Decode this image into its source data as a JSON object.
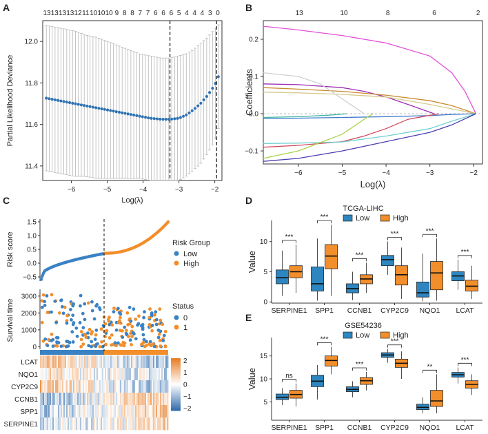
{
  "chart_data": [
    {
      "panel": "A",
      "type": "line",
      "title": "",
      "xlabel": "Log(λ)",
      "ylabel": "Partial Likelihood Deviance",
      "xlim": [
        -6.8,
        -1.8
      ],
      "ylim": [
        11.33,
        12.1
      ],
      "xticks": [
        -6,
        -5,
        -4,
        -3,
        -2
      ],
      "yticks": [
        11.4,
        11.6,
        11.8,
        12.0
      ],
      "top_labels": [
        "13",
        "13",
        "13",
        "13",
        "12",
        "11",
        "10",
        "10",
        "10",
        "9",
        "8",
        "8",
        "7",
        "7",
        "6",
        "6",
        "6",
        "5",
        "4",
        "4",
        "4",
        "3",
        "0"
      ],
      "vlines": [
        -3.25,
        -1.95
      ],
      "x": [
        -6.8,
        -6.5,
        -6.2,
        -5.9,
        -5.6,
        -5.3,
        -5.0,
        -4.7,
        -4.4,
        -4.1,
        -3.8,
        -3.5,
        -3.25,
        -3.0,
        -2.8,
        -2.6,
        -2.4,
        -2.2,
        -2.0,
        -1.9
      ],
      "mean": [
        11.73,
        11.72,
        11.71,
        11.7,
        11.69,
        11.68,
        11.67,
        11.66,
        11.65,
        11.64,
        11.63,
        11.625,
        11.625,
        11.63,
        11.645,
        11.67,
        11.7,
        11.74,
        11.79,
        11.83
      ],
      "upper": [
        12.08,
        12.07,
        12.06,
        12.05,
        12.03,
        12.02,
        12.0,
        11.98,
        11.96,
        11.94,
        11.93,
        11.92,
        11.92,
        11.93,
        11.94,
        11.96,
        11.99,
        12.02,
        12.06,
        12.08
      ],
      "lower": [
        11.38,
        11.37,
        11.36,
        11.35,
        11.35,
        11.34,
        11.34,
        11.34,
        11.34,
        11.34,
        11.33,
        11.33,
        11.33,
        11.33,
        11.35,
        11.38,
        11.41,
        11.46,
        11.52,
        11.58
      ]
    },
    {
      "panel": "B",
      "type": "line",
      "xlabel": "Log(λ)",
      "ylabel": "Coefficients",
      "xlim": [
        -6.8,
        -1.8
      ],
      "ylim": [
        -0.135,
        0.25
      ],
      "xticks": [
        -6,
        -5,
        -4,
        -3,
        -2
      ],
      "yticks": [
        -0.1,
        0.0,
        0.1,
        0.2
      ],
      "top_labels": [
        "13",
        "10",
        "8",
        "6",
        "2"
      ],
      "top_label_x": [
        -5.98,
        -4.96,
        -3.96,
        -2.9,
        -1.9
      ],
      "series": [
        {
          "name": "magenta",
          "color": "#e04fd6",
          "x": [
            -6.8,
            -6.0,
            -5.0,
            -4.0,
            -3.0,
            -2.5,
            -2.2,
            -1.95
          ],
          "values": [
            0.235,
            0.225,
            0.21,
            0.19,
            0.155,
            0.11,
            0.06,
            0.0
          ]
        },
        {
          "name": "purple",
          "color": "#9b2bb3",
          "x": [
            -6.8,
            -6.0,
            -5.0,
            -4.5,
            -4.0,
            -3.5,
            -2.9
          ],
          "values": [
            0.08,
            0.078,
            0.07,
            0.06,
            0.045,
            0.025,
            0.0
          ]
        },
        {
          "name": "orange",
          "color": "#c98a2e",
          "x": [
            -6.8,
            -6.0,
            -5.0,
            -4.0,
            -3.0,
            -2.5,
            -1.95
          ],
          "values": [
            0.07,
            0.066,
            0.06,
            0.05,
            0.035,
            0.022,
            0.0
          ]
        },
        {
          "name": "tan",
          "color": "#d7c98a",
          "x": [
            -6.8,
            -6.0,
            -5.0,
            -4.0,
            -3.0,
            -1.95
          ],
          "values": [
            0.058,
            0.056,
            0.052,
            0.045,
            0.025,
            0.0
          ]
        },
        {
          "name": "lightgray",
          "color": "#d0d0d0",
          "x": [
            -6.8,
            -6.0,
            -5.5,
            -5.0,
            -4.5
          ],
          "values": [
            0.11,
            0.1,
            0.08,
            0.04,
            0.0
          ]
        },
        {
          "name": "teal",
          "color": "#3fb3a5",
          "x": [
            -6.8,
            -6.0,
            -5.3,
            -4.9
          ],
          "values": [
            -0.01,
            -0.008,
            -0.004,
            0.0
          ]
        },
        {
          "name": "blue",
          "color": "#3d78c8",
          "x": [
            -6.8,
            -6.0,
            -5.0,
            -4.0,
            -3.0,
            -2.5,
            -1.95
          ],
          "values": [
            -0.013,
            -0.012,
            -0.01,
            -0.008,
            -0.005,
            -0.002,
            0.0
          ]
        },
        {
          "name": "crimson",
          "color": "#d24a5e",
          "x": [
            -6.8,
            -6.0,
            -5.0,
            -4.5,
            -4.0,
            -3.5,
            -2.8
          ],
          "values": [
            -0.09,
            -0.085,
            -0.075,
            -0.06,
            -0.04,
            -0.015,
            0.0
          ]
        },
        {
          "name": "cyan",
          "color": "#6fd1d1",
          "x": [
            -6.8,
            -6.0,
            -5.0,
            -4.0,
            -3.0,
            -2.5,
            -1.95
          ],
          "values": [
            -0.08,
            -0.079,
            -0.076,
            -0.06,
            -0.04,
            -0.02,
            0.0
          ]
        },
        {
          "name": "lime",
          "color": "#a9d34a",
          "x": [
            -6.8,
            -6.0,
            -5.0,
            -4.5,
            -4.3
          ],
          "values": [
            -0.12,
            -0.1,
            -0.055,
            -0.015,
            0.0
          ]
        },
        {
          "name": "navy",
          "color": "#4a3fb0",
          "x": [
            -6.8,
            -6.0,
            -5.0,
            -4.0,
            -3.0,
            -2.5,
            -1.95
          ],
          "values": [
            -0.128,
            -0.12,
            -0.1,
            -0.075,
            -0.05,
            -0.03,
            0.0
          ]
        }
      ]
    },
    {
      "panel": "C",
      "type": "scatter",
      "risk_score": {
        "ylabel": "Risk score",
        "yticks": [
          -0.5,
          0.0,
          0.5,
          1.0,
          1.5
        ],
        "ylim": [
          -0.65,
          1.6
        ],
        "n_low": 185,
        "n_high": 185,
        "low_min": -0.58,
        "low_max": 0.35,
        "high_min": 0.36,
        "high_max": 1.5
      },
      "survival": {
        "ylabel": "Survival time",
        "yticks": [
          0,
          1000,
          2000,
          3000
        ],
        "ylim": [
          -150,
          3400
        ]
      },
      "heatmap_genes": [
        "LCAT",
        "NQO1",
        "CYP2C9",
        "CCNB1",
        "SPP1",
        "SERPINE1"
      ],
      "colorbar_ticks": [
        "2",
        "1",
        "0",
        "−1",
        "−2"
      ],
      "legend_risk": {
        "title": "Risk Group",
        "items": [
          "Low",
          "High"
        ],
        "colors": [
          "#3b82c4",
          "#f28e2b"
        ]
      },
      "legend_status": {
        "title": "Status",
        "items": [
          "0",
          "1"
        ],
        "colors": [
          "#3b82c4",
          "#f28e2b"
        ]
      }
    },
    {
      "panel": "D",
      "type": "box",
      "title": "TCGA-LIHC",
      "ylabel": "Value",
      "yticks": [
        0,
        5,
        10
      ],
      "ylim": [
        -0.2,
        13.5
      ],
      "categories": [
        "SERPINE1",
        "SPP1",
        "CCNB1",
        "CYP2C9",
        "NQO1",
        "LCAT"
      ],
      "legend": [
        "Low",
        "High"
      ],
      "significance": [
        "***",
        "***",
        "***",
        "***",
        "***",
        "***"
      ],
      "low": [
        {
          "q1": 3.0,
          "med": 4.0,
          "q3": 5.3,
          "lo": 1.0,
          "hi": 8.5
        },
        {
          "q1": 1.8,
          "med": 3.0,
          "q3": 5.8,
          "lo": 0.2,
          "hi": 10.5
        },
        {
          "q1": 1.5,
          "med": 2.2,
          "q3": 3.0,
          "lo": 0.3,
          "hi": 5.0
        },
        {
          "q1": 6.0,
          "med": 7.0,
          "q3": 7.7,
          "lo": 4.5,
          "hi": 10.0
        },
        {
          "q1": 0.8,
          "med": 1.5,
          "q3": 3.3,
          "lo": 0.1,
          "hi": 8.0
        },
        {
          "q1": 3.5,
          "med": 4.3,
          "q3": 5.0,
          "lo": 2.0,
          "hi": 7.0
        }
      ],
      "high": [
        {
          "q1": 4.0,
          "med": 5.0,
          "q3": 6.0,
          "lo": 1.5,
          "hi": 9.5
        },
        {
          "q1": 5.5,
          "med": 7.6,
          "q3": 9.5,
          "lo": 1.0,
          "hi": 12.8
        },
        {
          "q1": 3.0,
          "med": 3.8,
          "q3": 4.5,
          "lo": 1.5,
          "hi": 6.5
        },
        {
          "q1": 2.8,
          "med": 4.5,
          "q3": 6.0,
          "lo": 0.5,
          "hi": 9.0
        },
        {
          "q1": 2.0,
          "med": 4.8,
          "q3": 6.7,
          "lo": 0.2,
          "hi": 10.5
        },
        {
          "q1": 1.8,
          "med": 2.6,
          "q3": 3.6,
          "lo": 0.5,
          "hi": 6.0
        }
      ]
    },
    {
      "panel": "E",
      "type": "box",
      "title": "GSE54236",
      "ylabel": "Value",
      "yticks": [
        5,
        10,
        15
      ],
      "ylim": [
        1.0,
        19.0
      ],
      "categories": [
        "SERPINE1",
        "SPP1",
        "CCNB1",
        "CYP2C9",
        "NQO1",
        "LCAT"
      ],
      "legend": [
        "Low",
        "High"
      ],
      "significance": [
        "ns",
        "***",
        "***",
        "***",
        "**",
        "***"
      ],
      "low": [
        {
          "q1": 5.5,
          "med": 6.0,
          "q3": 6.7,
          "lo": 4.3,
          "hi": 8.0
        },
        {
          "q1": 8.3,
          "med": 9.5,
          "q3": 10.8,
          "lo": 5.5,
          "hi": 13.0
        },
        {
          "q1": 7.2,
          "med": 7.7,
          "q3": 8.3,
          "lo": 6.0,
          "hi": 9.5
        },
        {
          "q1": 14.7,
          "med": 15.2,
          "q3": 15.7,
          "lo": 13.5,
          "hi": 16.5
        },
        {
          "q1": 3.3,
          "med": 3.8,
          "q3": 4.5,
          "lo": 2.5,
          "hi": 6.0
        },
        {
          "q1": 10.4,
          "med": 10.9,
          "q3": 11.4,
          "lo": 9.0,
          "hi": 12.5
        }
      ],
      "high": [
        {
          "q1": 5.8,
          "med": 6.6,
          "q3": 7.5,
          "lo": 4.0,
          "hi": 9.0
        },
        {
          "q1": 12.8,
          "med": 14.0,
          "q3": 15.0,
          "lo": 11.0,
          "hi": 17.0
        },
        {
          "q1": 8.8,
          "med": 9.6,
          "q3": 10.3,
          "lo": 7.5,
          "hi": 11.5
        },
        {
          "q1": 12.5,
          "med": 13.4,
          "q3": 14.3,
          "lo": 10.0,
          "hi": 16.0
        },
        {
          "q1": 4.0,
          "med": 5.2,
          "q3": 7.5,
          "lo": 2.5,
          "hi": 11.0
        },
        {
          "q1": 8.0,
          "med": 8.8,
          "q3": 9.6,
          "lo": 6.5,
          "hi": 11.0
        }
      ]
    }
  ],
  "panel_letters": [
    "A",
    "B",
    "C",
    "D",
    "E"
  ],
  "colors": {
    "low": "#3b82c4",
    "high": "#f28e2b",
    "points_A": "#2f73b3",
    "box_low": "#2e86c1",
    "box_high": "#f28e2b"
  }
}
